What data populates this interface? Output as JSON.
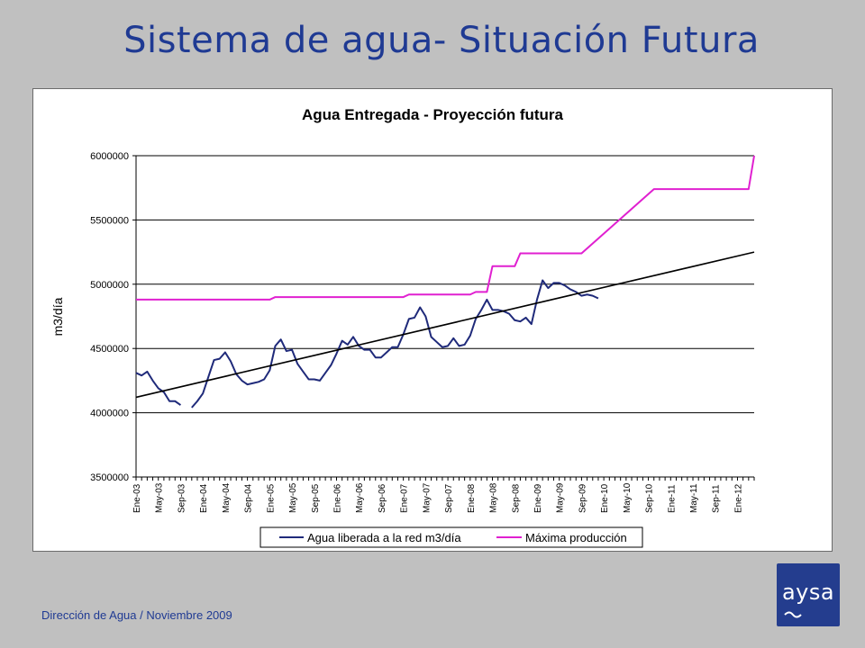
{
  "slide": {
    "title": "Sistema de agua- Situación Futura",
    "footer": "Dirección de Agua / Noviembre 2009",
    "logo_text": "aysa"
  },
  "colors": {
    "background": "#c0c0c0",
    "title": "#1f3a93",
    "series_agua": "#1f2a7a",
    "series_maxima": "#e020d0",
    "trend": "#000000",
    "logo": "#243d8e"
  },
  "chart_data": {
    "type": "line",
    "title": "Agua Entregada - Proyección futura",
    "xlabel": "",
    "ylabel": "m3/día",
    "ylim": [
      3500000,
      6000000
    ],
    "yticks": [
      3500000,
      4000000,
      4500000,
      5000000,
      5500000,
      6000000
    ],
    "ytick_labels": [
      "3500000",
      "4000000",
      "4500000",
      "5000000",
      "5500000",
      "6000000"
    ],
    "grid": "horizontal",
    "legend_position": "bottom",
    "x_range": [
      "Ene-03",
      "Abr-12"
    ],
    "x_tick_labels": [
      "Ene-03",
      "May-03",
      "Sep-03",
      "Ene-04",
      "May-04",
      "Sep-04",
      "Ene-05",
      "May-05",
      "Sep-05",
      "Ene-06",
      "May-06",
      "Sep-06",
      "Ene-07",
      "May-07",
      "Sep-07",
      "Ene-08",
      "May-08",
      "Sep-08",
      "Ene-09",
      "May-09",
      "Sep-09",
      "Ene-10",
      "May-10",
      "Sep-10",
      "Ene-11",
      "May-11",
      "Sep-11",
      "Ene-12"
    ],
    "series": [
      {
        "name": "Agua liberada a la red m3/día",
        "color": "#1f2a7a",
        "start": "Ene-03",
        "values": [
          4310000,
          4290000,
          4320000,
          4250000,
          4190000,
          4160000,
          4090000,
          4090000,
          4060000,
          null,
          4040000,
          4090000,
          4150000,
          4280000,
          4410000,
          4420000,
          4470000,
          4400000,
          4300000,
          4250000,
          4220000,
          4230000,
          4240000,
          4260000,
          4330000,
          4520000,
          4570000,
          4480000,
          4490000,
          4380000,
          4320000,
          4260000,
          4260000,
          4250000,
          4310000,
          4370000,
          4460000,
          4560000,
          4530000,
          4590000,
          4520000,
          4490000,
          4490000,
          4430000,
          4430000,
          4470000,
          4510000,
          4510000,
          4610000,
          4730000,
          4740000,
          4820000,
          4750000,
          4590000,
          4550000,
          4510000,
          4520000,
          4580000,
          4520000,
          4530000,
          4600000,
          4730000,
          4800000,
          4880000,
          4800000,
          4800000,
          4790000,
          4770000,
          4720000,
          4710000,
          4740000,
          4690000,
          4880000,
          5030000,
          4970000,
          5010000,
          5010000,
          4990000,
          4960000,
          4940000,
          4910000,
          4920000,
          4910000,
          4890000
        ]
      },
      {
        "name": "Máxima producción",
        "color": "#e020d0",
        "points": [
          [
            "Ene-03",
            4880000
          ],
          [
            "Ene-05",
            4880000
          ],
          [
            "Feb-05",
            4900000
          ],
          [
            "Ene-07",
            4900000
          ],
          [
            "Feb-07",
            4920000
          ],
          [
            "Ene-08",
            4920000
          ],
          [
            "Feb-08",
            4940000
          ],
          [
            "Abr-08",
            4940000
          ],
          [
            "May-08",
            5140000
          ],
          [
            "Sep-08",
            5140000
          ],
          [
            "Oct-08",
            5240000
          ],
          [
            "Sep-09",
            5240000
          ],
          [
            "Oct-10",
            5740000
          ],
          [
            "Mar-12",
            5740000
          ],
          [
            "Abr-12",
            6000000
          ]
        ]
      },
      {
        "name": "",
        "role": "trend",
        "color": "#000000",
        "points": [
          [
            "Ene-03",
            4120000
          ],
          [
            "Abr-12",
            5250000
          ]
        ]
      }
    ]
  }
}
